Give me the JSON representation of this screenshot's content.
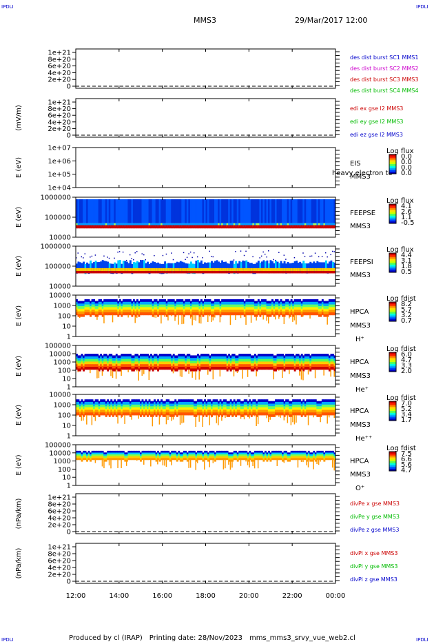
{
  "corner_labels": {
    "top_left": "IPDLI",
    "top_right": "IPDLI",
    "bottom_left": "IPDLI",
    "bottom_right": "IPDLI"
  },
  "header": {
    "spacecraft": "MMS3",
    "datetime": "29/Mar/2017 12:00"
  },
  "footer": {
    "produced_by": "Produced by cl (IRAP)",
    "printing_date": "Printing date: 28/Nov/2023",
    "filename": "mms_mms3_srvy_vue_web2.cl"
  },
  "x_axis": {
    "tick_labels": [
      "12:00",
      "14:00",
      "16:00",
      "18:00",
      "20:00",
      "22:00",
      "00:00"
    ]
  },
  "colors": {
    "red": "#cc0000",
    "magenta": "#cc00cc",
    "green": "#00bb00",
    "blue": "#0000cc"
  },
  "chart_data": [
    {
      "type": "line",
      "ylabel": "",
      "yticks": [
        "0",
        "2e+20",
        "4e+20",
        "6e+20",
        "8e+20",
        "1e+21"
      ],
      "zero_dashed": true,
      "legend": [
        {
          "text": "des dist burst SC1 MMS1",
          "color": "#0000cc"
        },
        {
          "text": "des dist burst SC2 MMS2",
          "color": "#cc00cc"
        },
        {
          "text": "des dist burst SC3 MMS3",
          "color": "#cc0000"
        },
        {
          "text": "des dist burst SC4 MMS4",
          "color": "#00bb00"
        }
      ]
    },
    {
      "type": "line",
      "ylabel": "(mV/m)",
      "yticks": [
        "0",
        "2e+20",
        "4e+20",
        "6e+20",
        "8e+20",
        "1e+21"
      ],
      "zero_dashed": true,
      "legend": [
        {
          "text": "edi ex gse l2 MMS3",
          "color": "#cc0000"
        },
        {
          "text": "edi ey gse l2 MMS3",
          "color": "#00bb00"
        },
        {
          "text": "edi ez gse l2 MMS3",
          "color": "#0000cc"
        }
      ]
    },
    {
      "type": "heatmap",
      "ylabel": "E (eV)",
      "yticks": [
        "1e+04",
        "1e+05",
        "1e+06",
        "1e+07"
      ],
      "empty": true,
      "labels": [
        "EIS",
        "MMS3"
      ],
      "overlay_text": "heavy electron to",
      "cb_title": "Log flux",
      "cb_ticks": [
        "0.0",
        "0.0",
        "0.0",
        "0.0"
      ]
    },
    {
      "type": "heatmap",
      "ylabel": "E (eV)",
      "yticks": [
        "10000",
        "100000",
        "1000000"
      ],
      "kind": "feepse",
      "labels": [
        "FEEPSE",
        "MMS3"
      ],
      "cb_title": "Log flux",
      "cb_ticks": [
        "4.1",
        "2.6",
        "1.1",
        "-0.5"
      ]
    },
    {
      "type": "heatmap",
      "ylabel": "E (eV)",
      "yticks": [
        "10000",
        "100000",
        "1000000"
      ],
      "kind": "feepsi",
      "labels": [
        "FEEPSI",
        "MMS3"
      ],
      "cb_title": "Log flux",
      "cb_ticks": [
        "4.4",
        "3.1",
        "1.8",
        "0.5"
      ]
    },
    {
      "type": "heatmap",
      "ylabel": "E (eV)",
      "yticks": [
        "1",
        "10",
        "100",
        "1000",
        "10000"
      ],
      "kind": "hpca_h",
      "labels": [
        "HPCA",
        "MMS3",
        "H⁺"
      ],
      "cb_title": "Log fdist",
      "cb_ticks": [
        "8.2",
        "5.7",
        "3.2",
        "0.7"
      ]
    },
    {
      "type": "heatmap",
      "ylabel": "E (eV)",
      "yticks": [
        "1",
        "10",
        "100",
        "1000",
        "10000",
        "100000"
      ],
      "kind": "hpca_he",
      "labels": [
        "HPCA",
        "MMS3",
        "He⁺"
      ],
      "cb_title": "Log fdist",
      "cb_ticks": [
        "6.0",
        "4.7",
        "3.3",
        "2.0"
      ]
    },
    {
      "type": "heatmap",
      "ylabel": "E (eV)",
      "yticks": [
        "1",
        "10",
        "100",
        "1000",
        "10000"
      ],
      "kind": "hpca_hepp",
      "labels": [
        "HPCA",
        "MMS3",
        "He⁺⁺"
      ],
      "cb_title": "Log fdist",
      "cb_ticks": [
        "7.0",
        "5.2",
        "3.4",
        "1.7"
      ]
    },
    {
      "type": "heatmap",
      "ylabel": "E (eV)",
      "yticks": [
        "1",
        "10",
        "100",
        "1000",
        "10000",
        "100000"
      ],
      "kind": "hpca_o",
      "labels": [
        "HPCA",
        "MMS3",
        "O⁺"
      ],
      "cb_title": "Log fdist",
      "cb_ticks": [
        "7.5",
        "6.6",
        "5.6",
        "4.7"
      ]
    },
    {
      "type": "line",
      "ylabel": "(nPa/km)",
      "yticks": [
        "0",
        "2e+20",
        "4e+20",
        "6e+20",
        "8e+20",
        "1e+21"
      ],
      "zero_dashed": true,
      "legend": [
        {
          "text": "divPe x gse MMS3",
          "color": "#cc0000"
        },
        {
          "text": "divPe y gse MMS3",
          "color": "#00bb00"
        },
        {
          "text": "divPe z gse MMS3",
          "color": "#0000cc"
        }
      ]
    },
    {
      "type": "line",
      "ylabel": "(nPa/km)",
      "yticks": [
        "0",
        "2e+20",
        "4e+20",
        "6e+20",
        "8e+20",
        "1e+21"
      ],
      "zero_dashed": true,
      "legend": [
        {
          "text": "divPi x gse MMS3",
          "color": "#cc0000"
        },
        {
          "text": "divPi y gse MMS3",
          "color": "#00bb00"
        },
        {
          "text": "divPi z gse MMS3",
          "color": "#0000cc"
        }
      ]
    }
  ]
}
